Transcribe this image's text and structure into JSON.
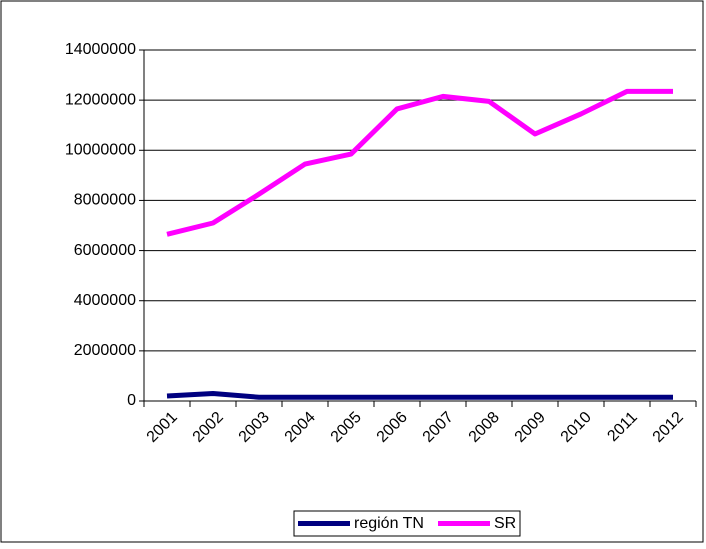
{
  "chart_data": {
    "type": "line",
    "categories": [
      "2001",
      "2002",
      "2003",
      "2004",
      "2005",
      "2006",
      "2007",
      "2008",
      "2009",
      "2010",
      "2011",
      "2012"
    ],
    "series": [
      {
        "name": "región TN",
        "color": "#000080",
        "values": [
          200000,
          300000,
          150000,
          150000,
          150000,
          150000,
          150000,
          150000,
          150000,
          150000,
          150000,
          150000
        ]
      },
      {
        "name": "SR",
        "color": "#ff00ff",
        "values": [
          6650000,
          7100000,
          8250000,
          9450000,
          9850000,
          11650000,
          12150000,
          11950000,
          10650000,
          11450000,
          12350000,
          12350000
        ]
      }
    ],
    "ylim": [
      0,
      14000000
    ],
    "yticks": [
      0,
      2000000,
      4000000,
      6000000,
      8000000,
      10000000,
      12000000,
      14000000
    ],
    "grid": true,
    "legend": "bottom"
  }
}
